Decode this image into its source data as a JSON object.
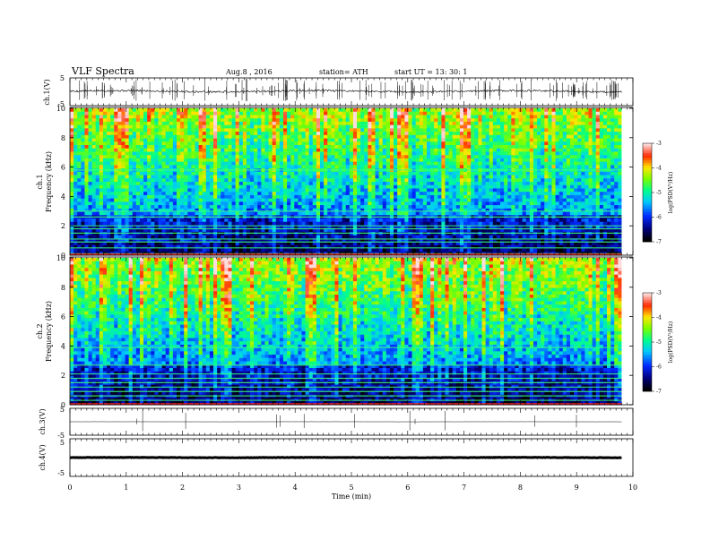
{
  "header": {
    "title": "VLF  Spectra",
    "date": "Aug.8  , 2016",
    "station": "station= ATH",
    "start": "start  UT  =    13: 30: 1"
  },
  "chart_data": [
    {
      "type": "line",
      "name": "ch1-waveform",
      "ylabel": "ch.1(V)",
      "ylim": [
        -5,
        5
      ],
      "ytick_labels": [
        "5",
        "-5"
      ],
      "xlim": [
        0,
        10
      ],
      "baseline": 0.2,
      "noise": 0.35,
      "spikes": 140
    },
    {
      "type": "heatmap",
      "name": "ch1-spectrogram",
      "ylabel": "ch.1\nFrequency  (kHz)",
      "ylabel_top": "ch.1",
      "ylabel_bottom": "Frequency  (kHz)",
      "x_units": "min",
      "xlim": [
        0,
        9.8
      ],
      "ylim": [
        0,
        10
      ],
      "ytick_labels": [
        "0",
        "2",
        "4",
        "6",
        "8",
        "10"
      ],
      "colorbar": {
        "label": "log(PSD(V²/Hz)",
        "range": [
          -7,
          -3
        ],
        "tick_labels": [
          "-3",
          "-4",
          "-5",
          "-6",
          "-7"
        ]
      },
      "horizontal_lines_khz": [
        0.1,
        0.5,
        0.9,
        1.1,
        1.5,
        1.8,
        2.0,
        2.6,
        3.0,
        5.8
      ],
      "seed": 17
    },
    {
      "type": "heatmap",
      "name": "ch2-spectrogram",
      "ylabel_top": "ch.2",
      "ylabel_bottom": "Frequency  (kHz)",
      "x_units": "min",
      "xlim": [
        0,
        9.8
      ],
      "ylim": [
        0,
        10
      ],
      "ytick_labels": [
        "0",
        "2",
        "4",
        "6",
        "8",
        "10"
      ],
      "colorbar": {
        "label": "log(PSD(V²/Hz)",
        "range": [
          -7,
          -3
        ],
        "tick_labels": [
          "-3",
          "-4",
          "-5",
          "-6",
          "-7"
        ]
      },
      "horizontal_lines_khz": [
        0.3,
        0.6,
        0.9,
        1.2,
        1.5,
        1.8,
        2.1,
        2.7,
        3.9
      ],
      "seed": 29
    },
    {
      "type": "line",
      "name": "ch3-waveform",
      "ylabel": "ch.3(V)",
      "ylim": [
        -5,
        5
      ],
      "ytick_labels": [
        "5",
        "-5"
      ],
      "xlim": [
        0,
        10
      ],
      "baseline": 0,
      "noise": 0.02,
      "spikes": 12
    },
    {
      "type": "line",
      "name": "ch4-waveform",
      "ylabel": "ch.4(V)",
      "ylim": [
        -5,
        5
      ],
      "ytick_labels": [
        "5",
        "-5"
      ],
      "xlim": [
        0,
        10
      ],
      "baseline": 0,
      "noise": 0.05,
      "spikes": 0
    }
  ],
  "xaxis": {
    "label": "Time  (min)",
    "tick_labels": [
      "0",
      "1",
      "2",
      "3",
      "4",
      "5",
      "6",
      "7",
      "8",
      "9",
      "10"
    ],
    "range": [
      0,
      10
    ]
  }
}
